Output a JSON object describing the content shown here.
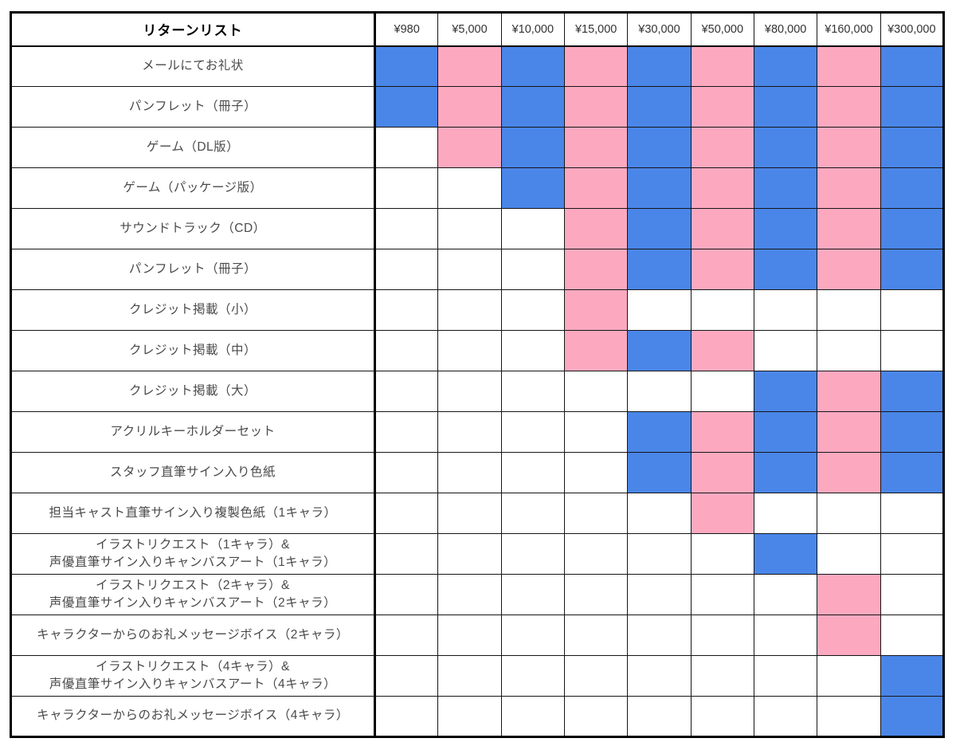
{
  "table": {
    "title": "リターンリスト",
    "tiers": [
      "¥980",
      "¥5,000",
      "¥10,000",
      "¥15,000",
      "¥30,000",
      "¥50,000",
      "¥80,000",
      "¥160,000",
      "¥300,000"
    ],
    "colors": {
      "blue": "#4a86e8",
      "pink": "#fca9c0",
      "empty": "#ffffff",
      "grid_line": "#151515"
    },
    "rows": [
      {
        "label": "メールにてお礼状",
        "cells": [
          "blue",
          "pink",
          "blue",
          "pink",
          "blue",
          "pink",
          "blue",
          "pink",
          "blue"
        ]
      },
      {
        "label": "パンフレット（冊子）",
        "cells": [
          "blue",
          "pink",
          "blue",
          "pink",
          "blue",
          "pink",
          "blue",
          "pink",
          "blue"
        ]
      },
      {
        "label": "ゲーム（DL版）",
        "cells": [
          "",
          "pink",
          "blue",
          "pink",
          "blue",
          "pink",
          "blue",
          "pink",
          "blue"
        ]
      },
      {
        "label": "ゲーム（パッケージ版）",
        "cells": [
          "",
          "",
          "blue",
          "pink",
          "blue",
          "pink",
          "blue",
          "pink",
          "blue"
        ]
      },
      {
        "label": "サウンドトラック（CD）",
        "cells": [
          "",
          "",
          "",
          "pink",
          "blue",
          "pink",
          "blue",
          "pink",
          "blue"
        ]
      },
      {
        "label": "パンフレット（冊子）",
        "cells": [
          "",
          "",
          "",
          "pink",
          "blue",
          "pink",
          "blue",
          "pink",
          "blue"
        ]
      },
      {
        "label": "クレジット掲載（小）",
        "cells": [
          "",
          "",
          "",
          "pink",
          "",
          "",
          "",
          "",
          ""
        ]
      },
      {
        "label": "クレジット掲載（中）",
        "cells": [
          "",
          "",
          "",
          "pink",
          "blue",
          "pink",
          "",
          "",
          ""
        ]
      },
      {
        "label": "クレジット掲載（大）",
        "cells": [
          "",
          "",
          "",
          "",
          "",
          "",
          "blue",
          "pink",
          "blue"
        ]
      },
      {
        "label": "アクリルキーホルダーセット",
        "cells": [
          "",
          "",
          "",
          "",
          "blue",
          "pink",
          "blue",
          "pink",
          "blue"
        ]
      },
      {
        "label": "スタッフ直筆サイン入り色紙",
        "cells": [
          "",
          "",
          "",
          "",
          "blue",
          "pink",
          "blue",
          "pink",
          "blue"
        ]
      },
      {
        "label": "担当キャスト直筆サイン入り複製色紙（1キャラ）",
        "cells": [
          "",
          "",
          "",
          "",
          "",
          "pink",
          "",
          "",
          ""
        ]
      },
      {
        "label": "イラストリクエスト（1キャラ）&\n声優直筆サイン入りキャンバスアート（1キャラ）",
        "cells": [
          "",
          "",
          "",
          "",
          "",
          "",
          "blue",
          "",
          ""
        ]
      },
      {
        "label": "イラストリクエスト（2キャラ）&\n声優直筆サイン入りキャンバスアート（2キャラ）",
        "cells": [
          "",
          "",
          "",
          "",
          "",
          "",
          "",
          "pink",
          ""
        ]
      },
      {
        "label": "キャラクターからのお礼メッセージボイス（2キャラ）",
        "cells": [
          "",
          "",
          "",
          "",
          "",
          "",
          "",
          "pink",
          ""
        ]
      },
      {
        "label": "イラストリクエスト（4キャラ）&\n声優直筆サイン入りキャンバスアート（4キャラ）",
        "cells": [
          "",
          "",
          "",
          "",
          "",
          "",
          "",
          "",
          "blue"
        ]
      },
      {
        "label": "キャラクターからのお礼メッセージボイス（4キャラ）",
        "cells": [
          "",
          "",
          "",
          "",
          "",
          "",
          "",
          "",
          "blue"
        ]
      }
    ]
  }
}
